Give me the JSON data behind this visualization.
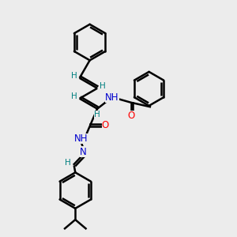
{
  "bg_color": "#ececec",
  "bond_color": "#000000",
  "bond_lw": 1.8,
  "atom_colors": {
    "N": "#0000cd",
    "O": "#ff0000",
    "H": "#008080",
    "C": "#000000"
  },
  "font_size_atom": 8.5,
  "font_size_H": 7.5,
  "fig_w": 3.0,
  "fig_h": 3.0,
  "dpi": 100
}
